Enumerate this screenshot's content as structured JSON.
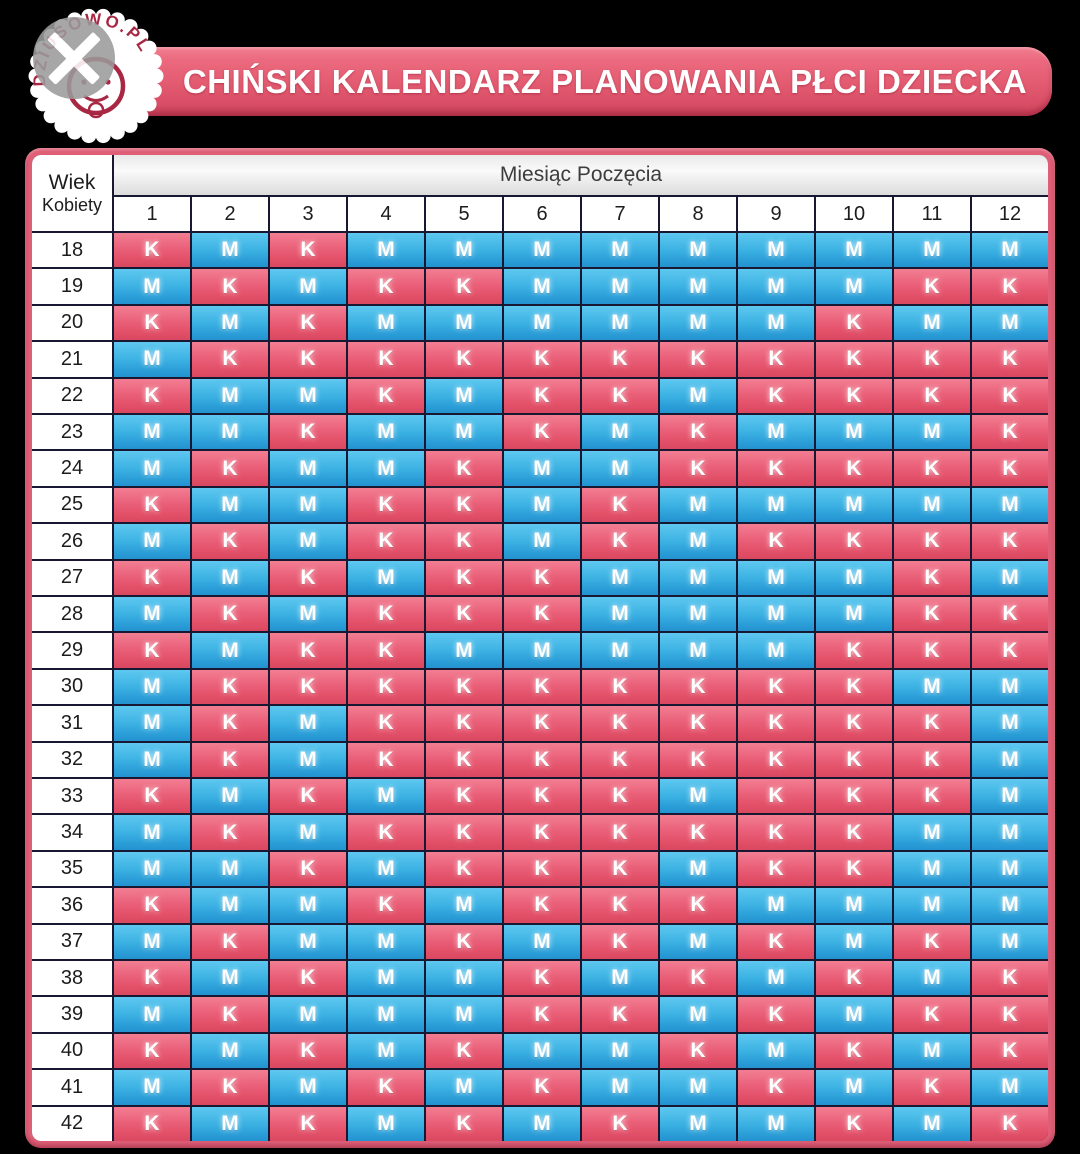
{
  "header": {
    "title": "CHIŃSKI KALENDARZ PLANOWANIA PŁCI DZIECKA",
    "logo": {
      "arc_text": "DZIUSOWO.PL",
      "watermark": "x-mark-circle"
    }
  },
  "table": {
    "corner_label_top": "Wiek",
    "corner_label_bottom": "Kobiety",
    "span_header": "Miesiąc Poczęcia"
  },
  "colors": {
    "girl_pink": "#e85a72",
    "boy_blue": "#35ace0",
    "frame_pink": "#df5f77",
    "title_bar_pink": "#e25a70",
    "grid_line": "#181832",
    "page_background": "#000000"
  },
  "chart_data": {
    "type": "table",
    "title": "CHIŃSKI KALENDARZ PLANOWANIA PŁCI DZIECKA",
    "row_header": "Wiek Kobiety",
    "column_header": "Miesiąc Poczęcia",
    "columns": [
      "1",
      "2",
      "3",
      "4",
      "5",
      "6",
      "7",
      "8",
      "9",
      "10",
      "11",
      "12"
    ],
    "legend": {
      "K": "pink cell",
      "M": "blue cell"
    },
    "rows": [
      {
        "age": "18",
        "values": [
          "K",
          "M",
          "K",
          "M",
          "M",
          "M",
          "M",
          "M",
          "M",
          "M",
          "M",
          "M"
        ]
      },
      {
        "age": "19",
        "values": [
          "M",
          "K",
          "M",
          "K",
          "K",
          "M",
          "M",
          "M",
          "M",
          "M",
          "K",
          "K"
        ]
      },
      {
        "age": "20",
        "values": [
          "K",
          "M",
          "K",
          "M",
          "M",
          "M",
          "M",
          "M",
          "M",
          "K",
          "M",
          "M"
        ]
      },
      {
        "age": "21",
        "values": [
          "M",
          "K",
          "K",
          "K",
          "K",
          "K",
          "K",
          "K",
          "K",
          "K",
          "K",
          "K"
        ]
      },
      {
        "age": "22",
        "values": [
          "K",
          "M",
          "M",
          "K",
          "M",
          "K",
          "K",
          "M",
          "K",
          "K",
          "K",
          "K"
        ]
      },
      {
        "age": "23",
        "values": [
          "M",
          "M",
          "K",
          "M",
          "M",
          "K",
          "M",
          "K",
          "M",
          "M",
          "M",
          "K"
        ]
      },
      {
        "age": "24",
        "values": [
          "M",
          "K",
          "M",
          "M",
          "K",
          "M",
          "M",
          "K",
          "K",
          "K",
          "K",
          "K"
        ]
      },
      {
        "age": "25",
        "values": [
          "K",
          "M",
          "M",
          "K",
          "K",
          "M",
          "K",
          "M",
          "M",
          "M",
          "M",
          "M"
        ]
      },
      {
        "age": "26",
        "values": [
          "M",
          "K",
          "M",
          "K",
          "K",
          "M",
          "K",
          "M",
          "K",
          "K",
          "K",
          "K"
        ]
      },
      {
        "age": "27",
        "values": [
          "K",
          "M",
          "K",
          "M",
          "K",
          "K",
          "M",
          "M",
          "M",
          "M",
          "K",
          "M"
        ]
      },
      {
        "age": "28",
        "values": [
          "M",
          "K",
          "M",
          "K",
          "K",
          "K",
          "M",
          "M",
          "M",
          "M",
          "K",
          "K"
        ]
      },
      {
        "age": "29",
        "values": [
          "K",
          "M",
          "K",
          "K",
          "M",
          "M",
          "M",
          "M",
          "M",
          "K",
          "K",
          "K"
        ]
      },
      {
        "age": "30",
        "values": [
          "M",
          "K",
          "K",
          "K",
          "K",
          "K",
          "K",
          "K",
          "K",
          "K",
          "M",
          "M"
        ]
      },
      {
        "age": "31",
        "values": [
          "M",
          "K",
          "M",
          "K",
          "K",
          "K",
          "K",
          "K",
          "K",
          "K",
          "K",
          "M"
        ]
      },
      {
        "age": "32",
        "values": [
          "M",
          "K",
          "M",
          "K",
          "K",
          "K",
          "K",
          "K",
          "K",
          "K",
          "K",
          "M"
        ]
      },
      {
        "age": "33",
        "values": [
          "K",
          "M",
          "K",
          "M",
          "K",
          "K",
          "K",
          "M",
          "K",
          "K",
          "K",
          "M"
        ]
      },
      {
        "age": "34",
        "values": [
          "M",
          "K",
          "M",
          "K",
          "K",
          "K",
          "K",
          "K",
          "K",
          "K",
          "M",
          "M"
        ]
      },
      {
        "age": "35",
        "values": [
          "M",
          "M",
          "K",
          "M",
          "K",
          "K",
          "K",
          "M",
          "K",
          "K",
          "M",
          "M"
        ]
      },
      {
        "age": "36",
        "values": [
          "K",
          "M",
          "M",
          "K",
          "M",
          "K",
          "K",
          "K",
          "M",
          "M",
          "M",
          "M"
        ]
      },
      {
        "age": "37",
        "values": [
          "M",
          "K",
          "M",
          "M",
          "K",
          "M",
          "K",
          "M",
          "K",
          "M",
          "K",
          "M"
        ]
      },
      {
        "age": "38",
        "values": [
          "K",
          "M",
          "K",
          "M",
          "M",
          "K",
          "M",
          "K",
          "M",
          "K",
          "M",
          "K"
        ]
      },
      {
        "age": "39",
        "values": [
          "M",
          "K",
          "M",
          "M",
          "M",
          "K",
          "K",
          "M",
          "K",
          "M",
          "K",
          "K"
        ]
      },
      {
        "age": "40",
        "values": [
          "K",
          "M",
          "K",
          "M",
          "K",
          "M",
          "M",
          "K",
          "M",
          "K",
          "M",
          "K"
        ]
      },
      {
        "age": "41",
        "values": [
          "M",
          "K",
          "M",
          "K",
          "M",
          "K",
          "M",
          "M",
          "K",
          "M",
          "K",
          "M"
        ]
      },
      {
        "age": "42",
        "values": [
          "K",
          "M",
          "K",
          "M",
          "K",
          "M",
          "K",
          "M",
          "M",
          "K",
          "M",
          "K"
        ]
      }
    ]
  }
}
